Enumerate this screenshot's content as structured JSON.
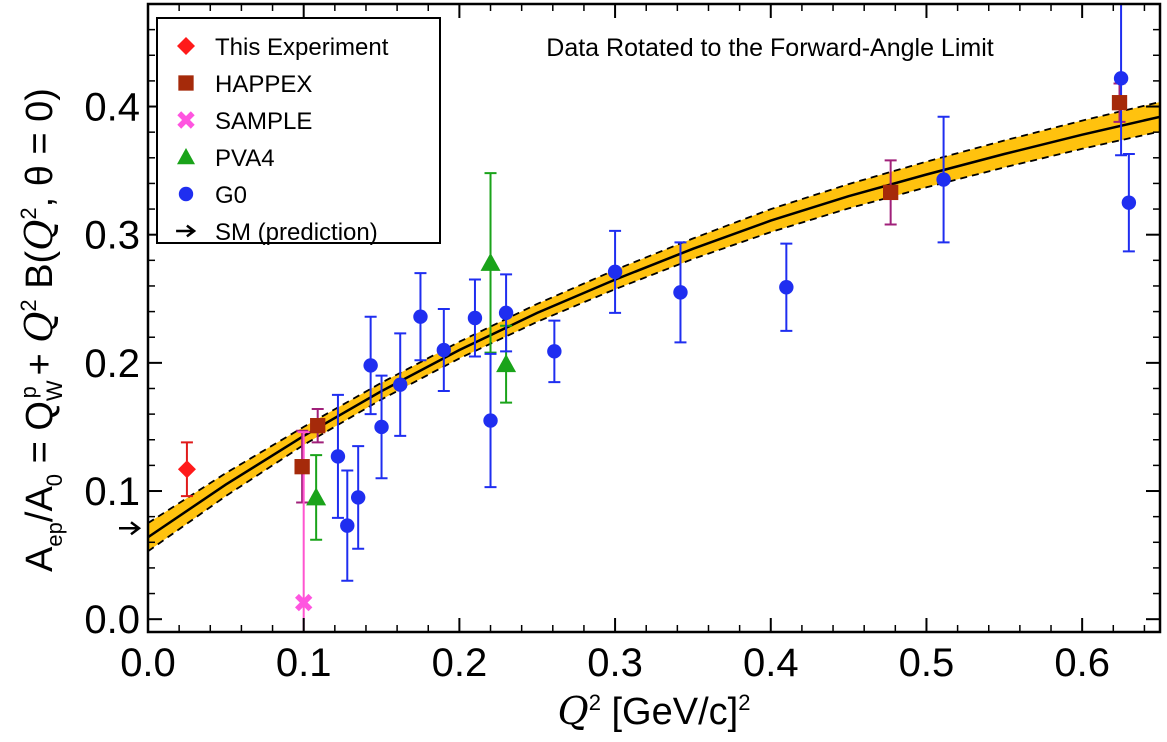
{
  "chart_data": {
    "type": "scatter",
    "annotation": "Data Rotated to the Forward-Angle Limit",
    "xlabel": {
      "prefix": "Q",
      "sup": "2",
      "text": " [GeV/c]",
      "sup2": "2"
    },
    "ylabel": "A_ep/A_0 = Q_W^p + Q^2 B(Q^2, θ = 0)",
    "xlim": [
      0.0,
      0.65
    ],
    "ylim": [
      -0.01,
      0.48
    ],
    "xticks": [
      "0.0",
      "0.1",
      "0.2",
      "0.3",
      "0.4",
      "0.5",
      "0.6"
    ],
    "yticks": [
      "0.0",
      "0.1",
      "0.2",
      "0.3",
      "0.4"
    ],
    "grid": false,
    "legend_position": "top-left",
    "fit_band": {
      "color": "#ffc20e",
      "x": [
        0.0,
        0.05,
        0.1,
        0.15,
        0.2,
        0.25,
        0.3,
        0.35,
        0.4,
        0.45,
        0.5,
        0.55,
        0.6,
        0.65
      ],
      "central": [
        0.064,
        0.105,
        0.143,
        0.178,
        0.21,
        0.239,
        0.265,
        0.289,
        0.311,
        0.33,
        0.347,
        0.363,
        0.378,
        0.392
      ],
      "halfwidth": [
        0.011,
        0.009,
        0.007,
        0.0065,
        0.0065,
        0.007,
        0.0075,
        0.008,
        0.009,
        0.0095,
        0.01,
        0.0105,
        0.011,
        0.0115
      ]
    },
    "series": [
      {
        "name": "This Experiment",
        "marker": "diamond",
        "color": "#ff1a1a",
        "errcolor": "#e01a1a",
        "points": [
          {
            "x": 0.025,
            "y": 0.117,
            "err": 0.021
          }
        ]
      },
      {
        "name": "HAPPEX",
        "marker": "square",
        "color": "#a52a0a",
        "errcolor": "#a0207a",
        "points": [
          {
            "x": 0.099,
            "y": 0.119,
            "err": 0.028
          },
          {
            "x": 0.109,
            "y": 0.151,
            "err": 0.013
          },
          {
            "x": 0.477,
            "y": 0.333,
            "err": 0.025
          },
          {
            "x": 0.624,
            "y": 0.403,
            "err": 0.015
          }
        ]
      },
      {
        "name": "SAMPLE",
        "marker": "cross",
        "color": "#ff55e0",
        "errcolor": "#ff55d0",
        "points": [
          {
            "x": 0.1,
            "y": 0.013,
            "err": 0.133
          }
        ]
      },
      {
        "name": "PVA4",
        "marker": "triangle",
        "color": "#1aa31a",
        "errcolor": "#1aa31a",
        "points": [
          {
            "x": 0.108,
            "y": 0.095,
            "err": 0.033
          },
          {
            "x": 0.23,
            "y": 0.199,
            "err": 0.03
          },
          {
            "x": 0.22,
            "y": 0.278,
            "err": 0.07
          }
        ]
      },
      {
        "name": "G0",
        "marker": "circle",
        "color": "#1f2ef0",
        "errcolor": "#1f2ef0",
        "points": [
          {
            "x": 0.122,
            "y": 0.127,
            "err": 0.048
          },
          {
            "x": 0.128,
            "y": 0.073,
            "err": 0.043
          },
          {
            "x": 0.135,
            "y": 0.095,
            "err": 0.04
          },
          {
            "x": 0.143,
            "y": 0.198,
            "err": 0.038
          },
          {
            "x": 0.15,
            "y": 0.15,
            "err": 0.04
          },
          {
            "x": 0.162,
            "y": 0.183,
            "err": 0.04
          },
          {
            "x": 0.175,
            "y": 0.236,
            "err": 0.034
          },
          {
            "x": 0.19,
            "y": 0.21,
            "err": 0.032
          },
          {
            "x": 0.21,
            "y": 0.235,
            "err": 0.03
          },
          {
            "x": 0.22,
            "y": 0.155,
            "err": 0.052
          },
          {
            "x": 0.23,
            "y": 0.239,
            "err": 0.03
          },
          {
            "x": 0.261,
            "y": 0.209,
            "err": 0.024
          },
          {
            "x": 0.3,
            "y": 0.271,
            "err": 0.032
          },
          {
            "x": 0.342,
            "y": 0.255,
            "err": 0.039
          },
          {
            "x": 0.41,
            "y": 0.259,
            "err": 0.034
          },
          {
            "x": 0.511,
            "y": 0.343,
            "err": 0.049
          },
          {
            "x": 0.625,
            "y": 0.422,
            "err": 0.06
          },
          {
            "x": 0.63,
            "y": 0.325,
            "err": 0.038
          }
        ]
      },
      {
        "name": "SM (prediction)",
        "marker": "arrow",
        "color": "#000000",
        "errcolor": "#000000",
        "points": [
          {
            "x": 0.0,
            "y": 0.071
          }
        ]
      }
    ]
  }
}
